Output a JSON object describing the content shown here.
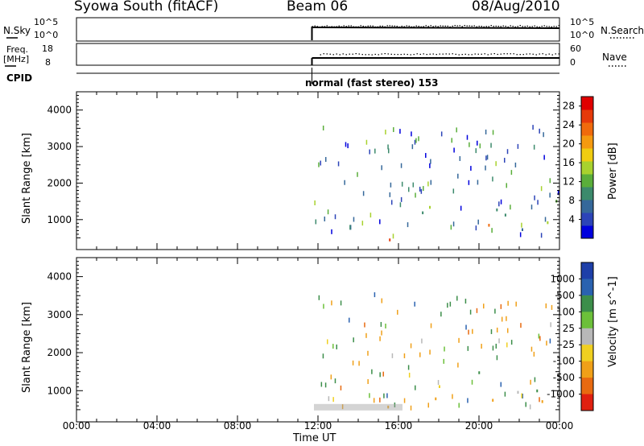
{
  "header": {
    "station": "Syowa South (fitACF)",
    "beam": "Beam 06",
    "date": "08/Aug/2010"
  },
  "panels": {
    "nsky_label": "N.Sky",
    "nsky_ticks": [
      "10^5",
      "10^0"
    ],
    "nsearch_label": "N.Search",
    "nsearch_ticks": [
      "10^5",
      "10^0"
    ],
    "freq_label_1": "Freq.",
    "freq_label_2": "[MHz]",
    "freq_ticks": [
      "18",
      "8"
    ],
    "nave_label": "Nave",
    "nave_ticks": [
      "60",
      "0"
    ],
    "cpid_label": "CPID",
    "cpid_text": "normal (fast stereo) 153"
  },
  "colors": {
    "power_scale": [
      "#0000dd",
      "#2c44b8",
      "#35689a",
      "#3c8a6c",
      "#5aae3a",
      "#a8d22e",
      "#f0cc10",
      "#f59a10",
      "#f06a0c",
      "#e63a0a",
      "#e00000"
    ],
    "velocity_scale": [
      "#1e3fa8",
      "#2a62b0",
      "#3c8e4a",
      "#6cc03a",
      "#b8b8b8",
      "#f0d020",
      "#f0a018",
      "#e86a10",
      "#e02010"
    ],
    "ground_scatter": "#a0a0a0"
  },
  "chart_data": [
    {
      "type": "heatmap",
      "name": "power",
      "ylabel": "Slant Range [km]",
      "yticks": [
        1000,
        2000,
        3000,
        4000
      ],
      "ylim": [
        180,
        4500
      ],
      "xlim": [
        0,
        24
      ],
      "colorbar_label": "Power [dB]",
      "colorbar_ticks": [
        4,
        8,
        12,
        16,
        20,
        24,
        28
      ],
      "colorbar_range": [
        0,
        30
      ],
      "data_start_hour": 11.7,
      "features": [
        {
          "t0": 11.75,
          "t1": 12.5,
          "r0": 1650,
          "r1": 1950,
          "level": 12
        },
        {
          "t0": 11.75,
          "t1": 19.0,
          "r0": 450,
          "r1": 650,
          "level": 18
        },
        {
          "t0": 12.0,
          "t1": 18.2,
          "r0": 350,
          "r1": 500,
          "level": 10
        },
        {
          "t0": 16.5,
          "t1": 24.0,
          "r0": 700,
          "r1": 1700,
          "level": 10
        },
        {
          "t0": 19.0,
          "t1": 23.0,
          "r0": 800,
          "r1": 1200,
          "level": 24
        },
        {
          "t0": 21.5,
          "t1": 24.0,
          "r0": 1500,
          "r1": 2300,
          "level": 9
        }
      ]
    },
    {
      "type": "heatmap",
      "name": "velocity",
      "ylabel": "Slant Range [km]",
      "yticks": [
        1000,
        2000,
        3000,
        4000
      ],
      "ylim": [
        180,
        4500
      ],
      "xlim": [
        0,
        24
      ],
      "xlabel": "Time UT",
      "xticks": [
        "00:00",
        "04:00",
        "08:00",
        "12:00",
        "16:00",
        "20:00",
        "00:00"
      ],
      "colorbar_label": "Velocity [m s^-1]",
      "colorbar_ticks": [
        1000,
        500,
        100,
        25,
        -25,
        -100,
        -500,
        -1000
      ],
      "data_start_hour": 11.7,
      "features": [
        {
          "t0": 11.75,
          "t1": 12.5,
          "r0": 1650,
          "r1": 1950,
          "vel": -150
        },
        {
          "t0": 11.75,
          "t1": 19.0,
          "r0": 450,
          "r1": 650,
          "vel": 0
        },
        {
          "t0": 12.0,
          "t1": 18.2,
          "r0": 350,
          "r1": 500,
          "vel": -200
        },
        {
          "t0": 16.5,
          "t1": 24.0,
          "r0": 700,
          "r1": 1700,
          "vel": -200
        },
        {
          "t0": 19.0,
          "t1": 23.0,
          "r0": 800,
          "r1": 1200,
          "vel": 600
        }
      ]
    }
  ]
}
